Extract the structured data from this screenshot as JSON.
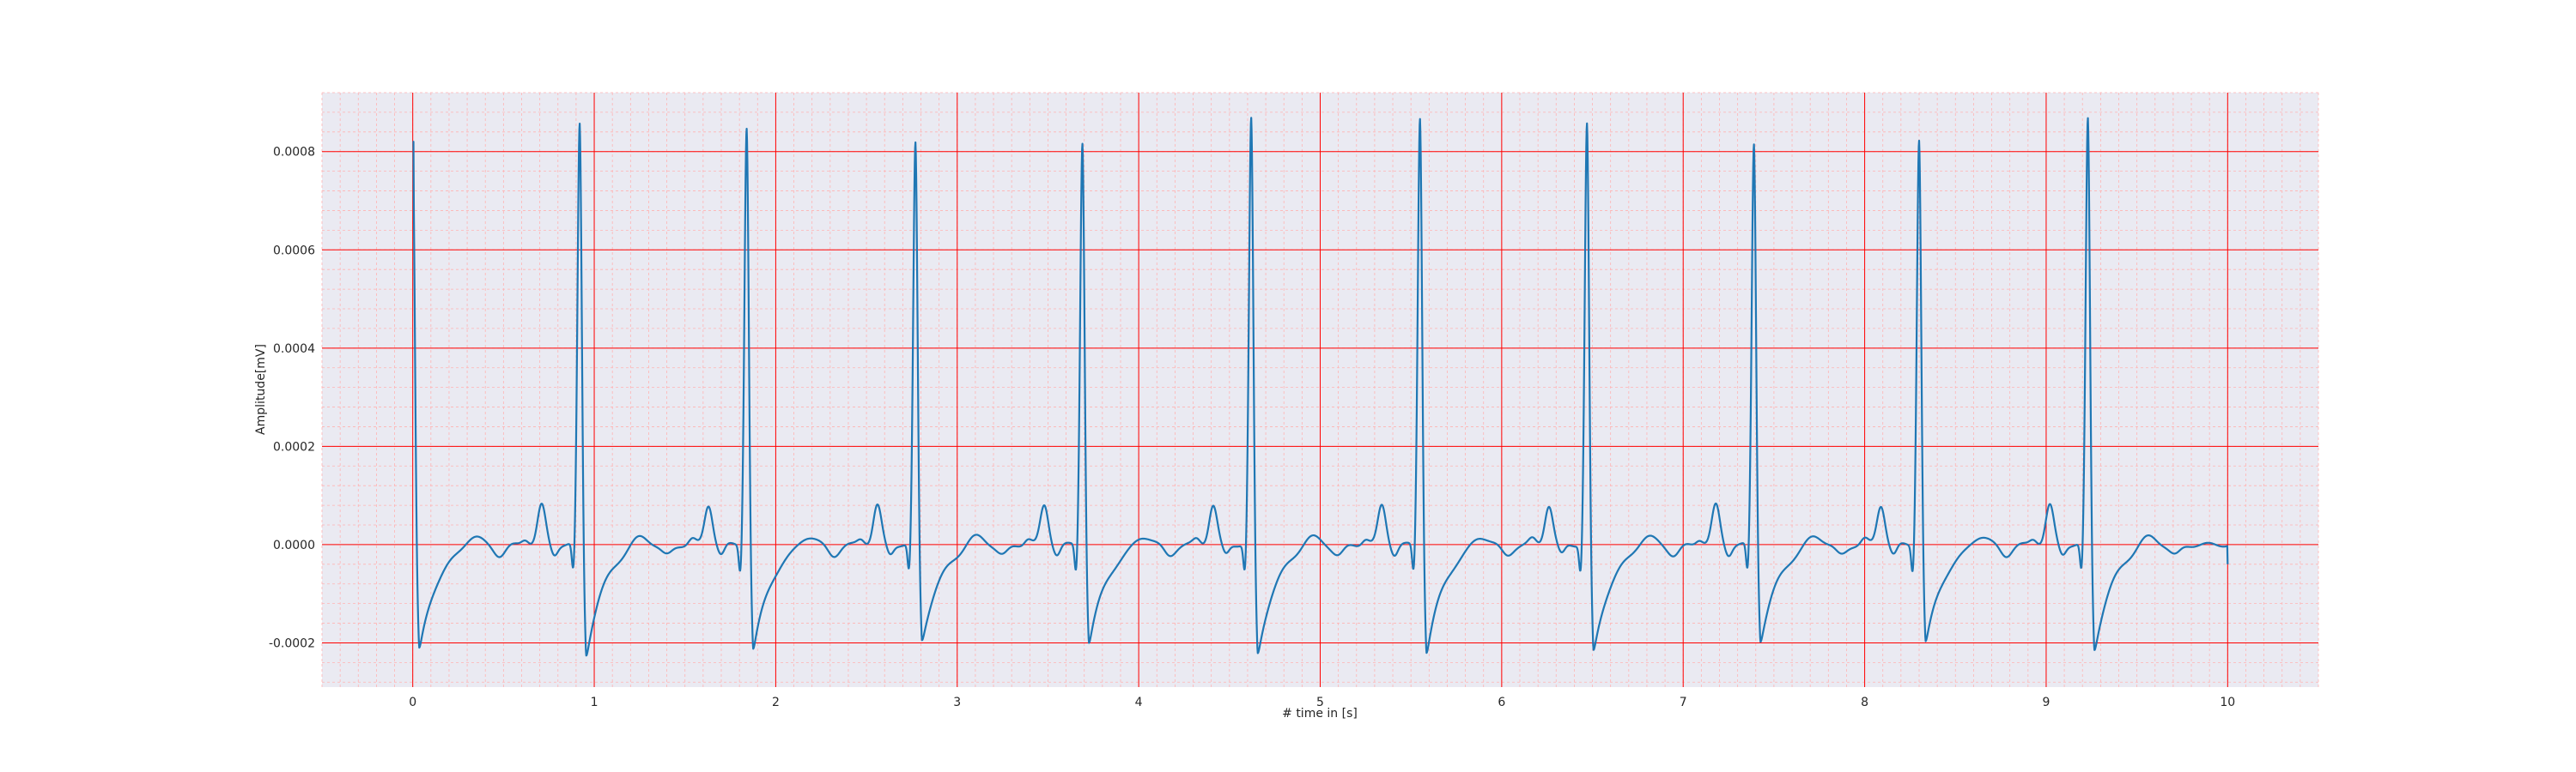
{
  "chart_data": {
    "type": "line",
    "title": "",
    "xlabel": "# time in [s]",
    "ylabel": "Amplitude[mV]",
    "xlim": [
      -0.5,
      10.5
    ],
    "ylim": [
      -0.00029,
      0.00092
    ],
    "x_ticks": [
      0,
      1,
      2,
      3,
      4,
      5,
      6,
      7,
      8,
      9,
      10
    ],
    "x_tick_labels": [
      "0",
      "1",
      "2",
      "3",
      "4",
      "5",
      "6",
      "7",
      "8",
      "9",
      "10"
    ],
    "y_ticks": [
      -0.0002,
      0.0,
      0.0002,
      0.0004,
      0.0006,
      0.0008
    ],
    "y_tick_labels": [
      "-0.0002",
      "0.0000",
      "0.0002",
      "0.0004",
      "0.0006",
      "0.0008"
    ],
    "grid": true,
    "minor_grid": true,
    "legend": "none",
    "colors": {
      "background": "#eaeaf2",
      "major_grid": "#ff0000",
      "minor_grid": "#ffb3b3",
      "line": "#1f77b4"
    },
    "series": [
      {
        "beats": [
          {
            "r_time": 0.0,
            "r_peak": 0.00082,
            "s_min": -0.000225
          },
          {
            "r_time": 0.92,
            "r_peak": 0.000855,
            "s_min": -0.000235
          },
          {
            "r_time": 1.84,
            "r_peak": 0.00085,
            "s_min": -0.000225
          },
          {
            "r_time": 2.77,
            "r_peak": 0.000815,
            "s_min": -0.000205
          },
          {
            "r_time": 3.69,
            "r_peak": 0.00082,
            "s_min": -0.00021
          },
          {
            "r_time": 4.62,
            "r_peak": 0.000865,
            "s_min": -0.000235
          },
          {
            "r_time": 5.55,
            "r_peak": 0.00087,
            "s_min": -0.00023
          },
          {
            "r_time": 6.47,
            "r_peak": 0.000855,
            "s_min": -0.00023
          },
          {
            "r_time": 7.39,
            "r_peak": 0.000815,
            "s_min": -0.000205
          },
          {
            "r_time": 8.3,
            "r_peak": 0.000825,
            "s_min": -0.00021
          },
          {
            "r_time": 9.23,
            "r_peak": 0.000865,
            "s_min": -0.000225
          }
        ],
        "end_time": 10.0,
        "end_value": -4e-05
      }
    ]
  }
}
